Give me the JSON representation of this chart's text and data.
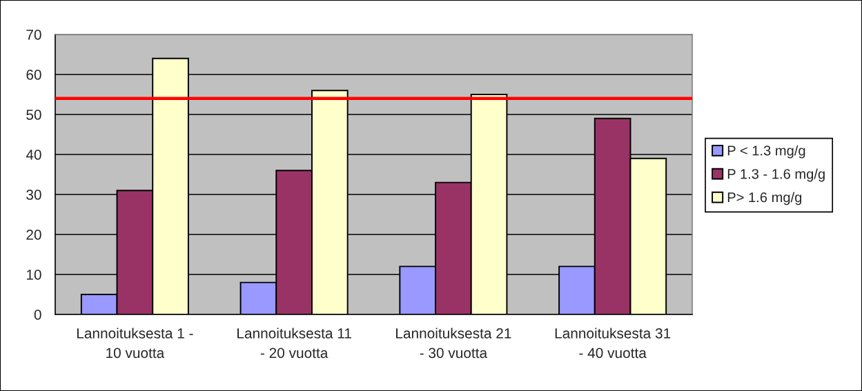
{
  "chart_data": {
    "type": "bar",
    "categories": [
      "Lannoituksesta 1 -\n10 vuotta",
      "Lannoituksesta 11\n- 20 vuotta",
      "Lannoituksesta 21\n- 30 vuotta",
      "Lannoituksesta 31\n- 40 vuotta"
    ],
    "series": [
      {
        "name": "P < 1.3 mg/g",
        "color": "#9999ff",
        "values": [
          5,
          8,
          12,
          12
        ]
      },
      {
        "name": "P 1.3 - 1.6 mg/g",
        "color": "#993366",
        "values": [
          31,
          36,
          33,
          49
        ]
      },
      {
        "name": "P> 1.6 mg/g",
        "color": "#ffffcc",
        "values": [
          64,
          56,
          55,
          39
        ]
      }
    ],
    "ylim": [
      0,
      70
    ],
    "yticks": [
      0,
      10,
      20,
      30,
      40,
      50,
      60,
      70
    ],
    "grid": "y",
    "legend": "right",
    "ref_lines": [
      {
        "axis": "y",
        "value": 54,
        "color": "#ff0000",
        "line_style": "solid"
      }
    ]
  }
}
